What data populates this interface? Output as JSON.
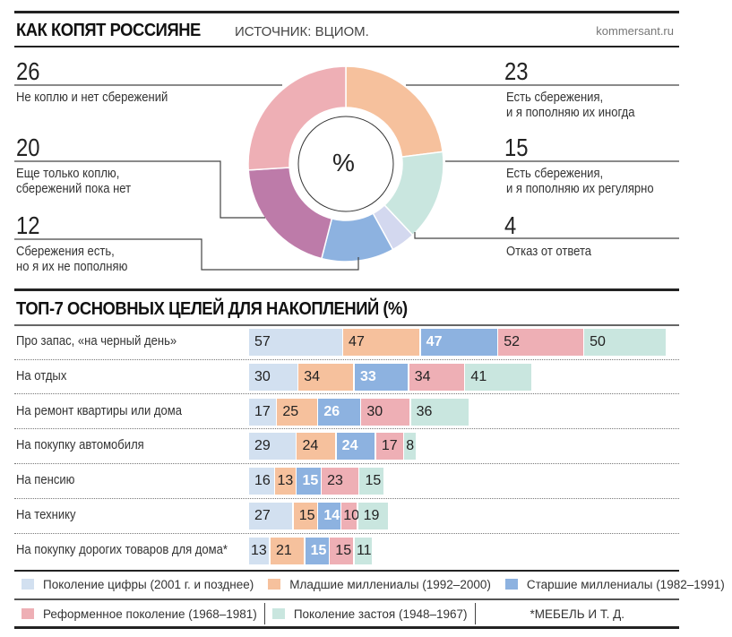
{
  "header": {
    "title": "КАК КОПЯТ РОССИЯНЕ",
    "source": "ИСТОЧНИК: ВЦИОМ.",
    "site": "kommersant.ru"
  },
  "donut": {
    "center_label": "%",
    "segments": [
      {
        "value": 23,
        "number": "23",
        "label_lines": [
          "Есть сбережения,",
          "и я пополняю их иногда"
        ],
        "color": "#f6c19d"
      },
      {
        "value": 15,
        "number": "15",
        "label_lines": [
          "Есть сбережения,",
          "и я пополняю их регулярно"
        ],
        "color": "#c9e6df"
      },
      {
        "value": 4,
        "number": "4",
        "label_lines": [
          "Отказ от ответа"
        ],
        "color": "#d3d8ef"
      },
      {
        "value": 12,
        "number": "12",
        "label_lines": [
          "Сбережения есть,",
          "но я их не пополняю"
        ],
        "color": "#8db2e0"
      },
      {
        "value": 20,
        "number": "20",
        "label_lines": [
          "Еще только коплю,",
          "сбережений пока нет"
        ],
        "color": "#bd7ba9"
      },
      {
        "value": 26,
        "number": "26",
        "label_lines": [
          "Не коплю и нет сбережений"
        ],
        "color": "#eeafb5"
      }
    ]
  },
  "chart_data": {
    "type": "bar",
    "title": "ТОП-7 ОСНОВНЫХ ЦЕЛЕЙ ДЛЯ НАКОПЛЕНИЙ (%)",
    "stacked": true,
    "orientation": "horizontal",
    "categories": [
      "Про запас, «на черный день»",
      "На отдых",
      "На ремонт квартиры или дома",
      "На покупку автомобиля",
      "На пенсию",
      "На технику",
      "На покупку дорогих товаров для дома*"
    ],
    "series": [
      {
        "name": "Поколение цифры (2001 г. и позднее)",
        "color": "#d2e0f0",
        "values": [
          57,
          30,
          17,
          29,
          16,
          27,
          13
        ]
      },
      {
        "name": "Младшие миллениалы (1992–2000)",
        "color": "#f6c19d",
        "values": [
          47,
          34,
          25,
          24,
          13,
          15,
          21
        ]
      },
      {
        "name": "Старшие миллениалы (1982–1991)",
        "color": "#8db2e0",
        "values": [
          47,
          33,
          26,
          24,
          15,
          14,
          15
        ]
      },
      {
        "name": "Реформенное поколение (1968–1981)",
        "color": "#eeafb5",
        "values": [
          52,
          34,
          30,
          17,
          23,
          10,
          15
        ]
      },
      {
        "name": "Поколение застоя (1948–1967)",
        "color": "#c9e6df",
        "values": [
          50,
          41,
          36,
          8,
          15,
          19,
          11
        ]
      }
    ],
    "footnote": "*МЕБЕЛЬ И Т. Д."
  }
}
